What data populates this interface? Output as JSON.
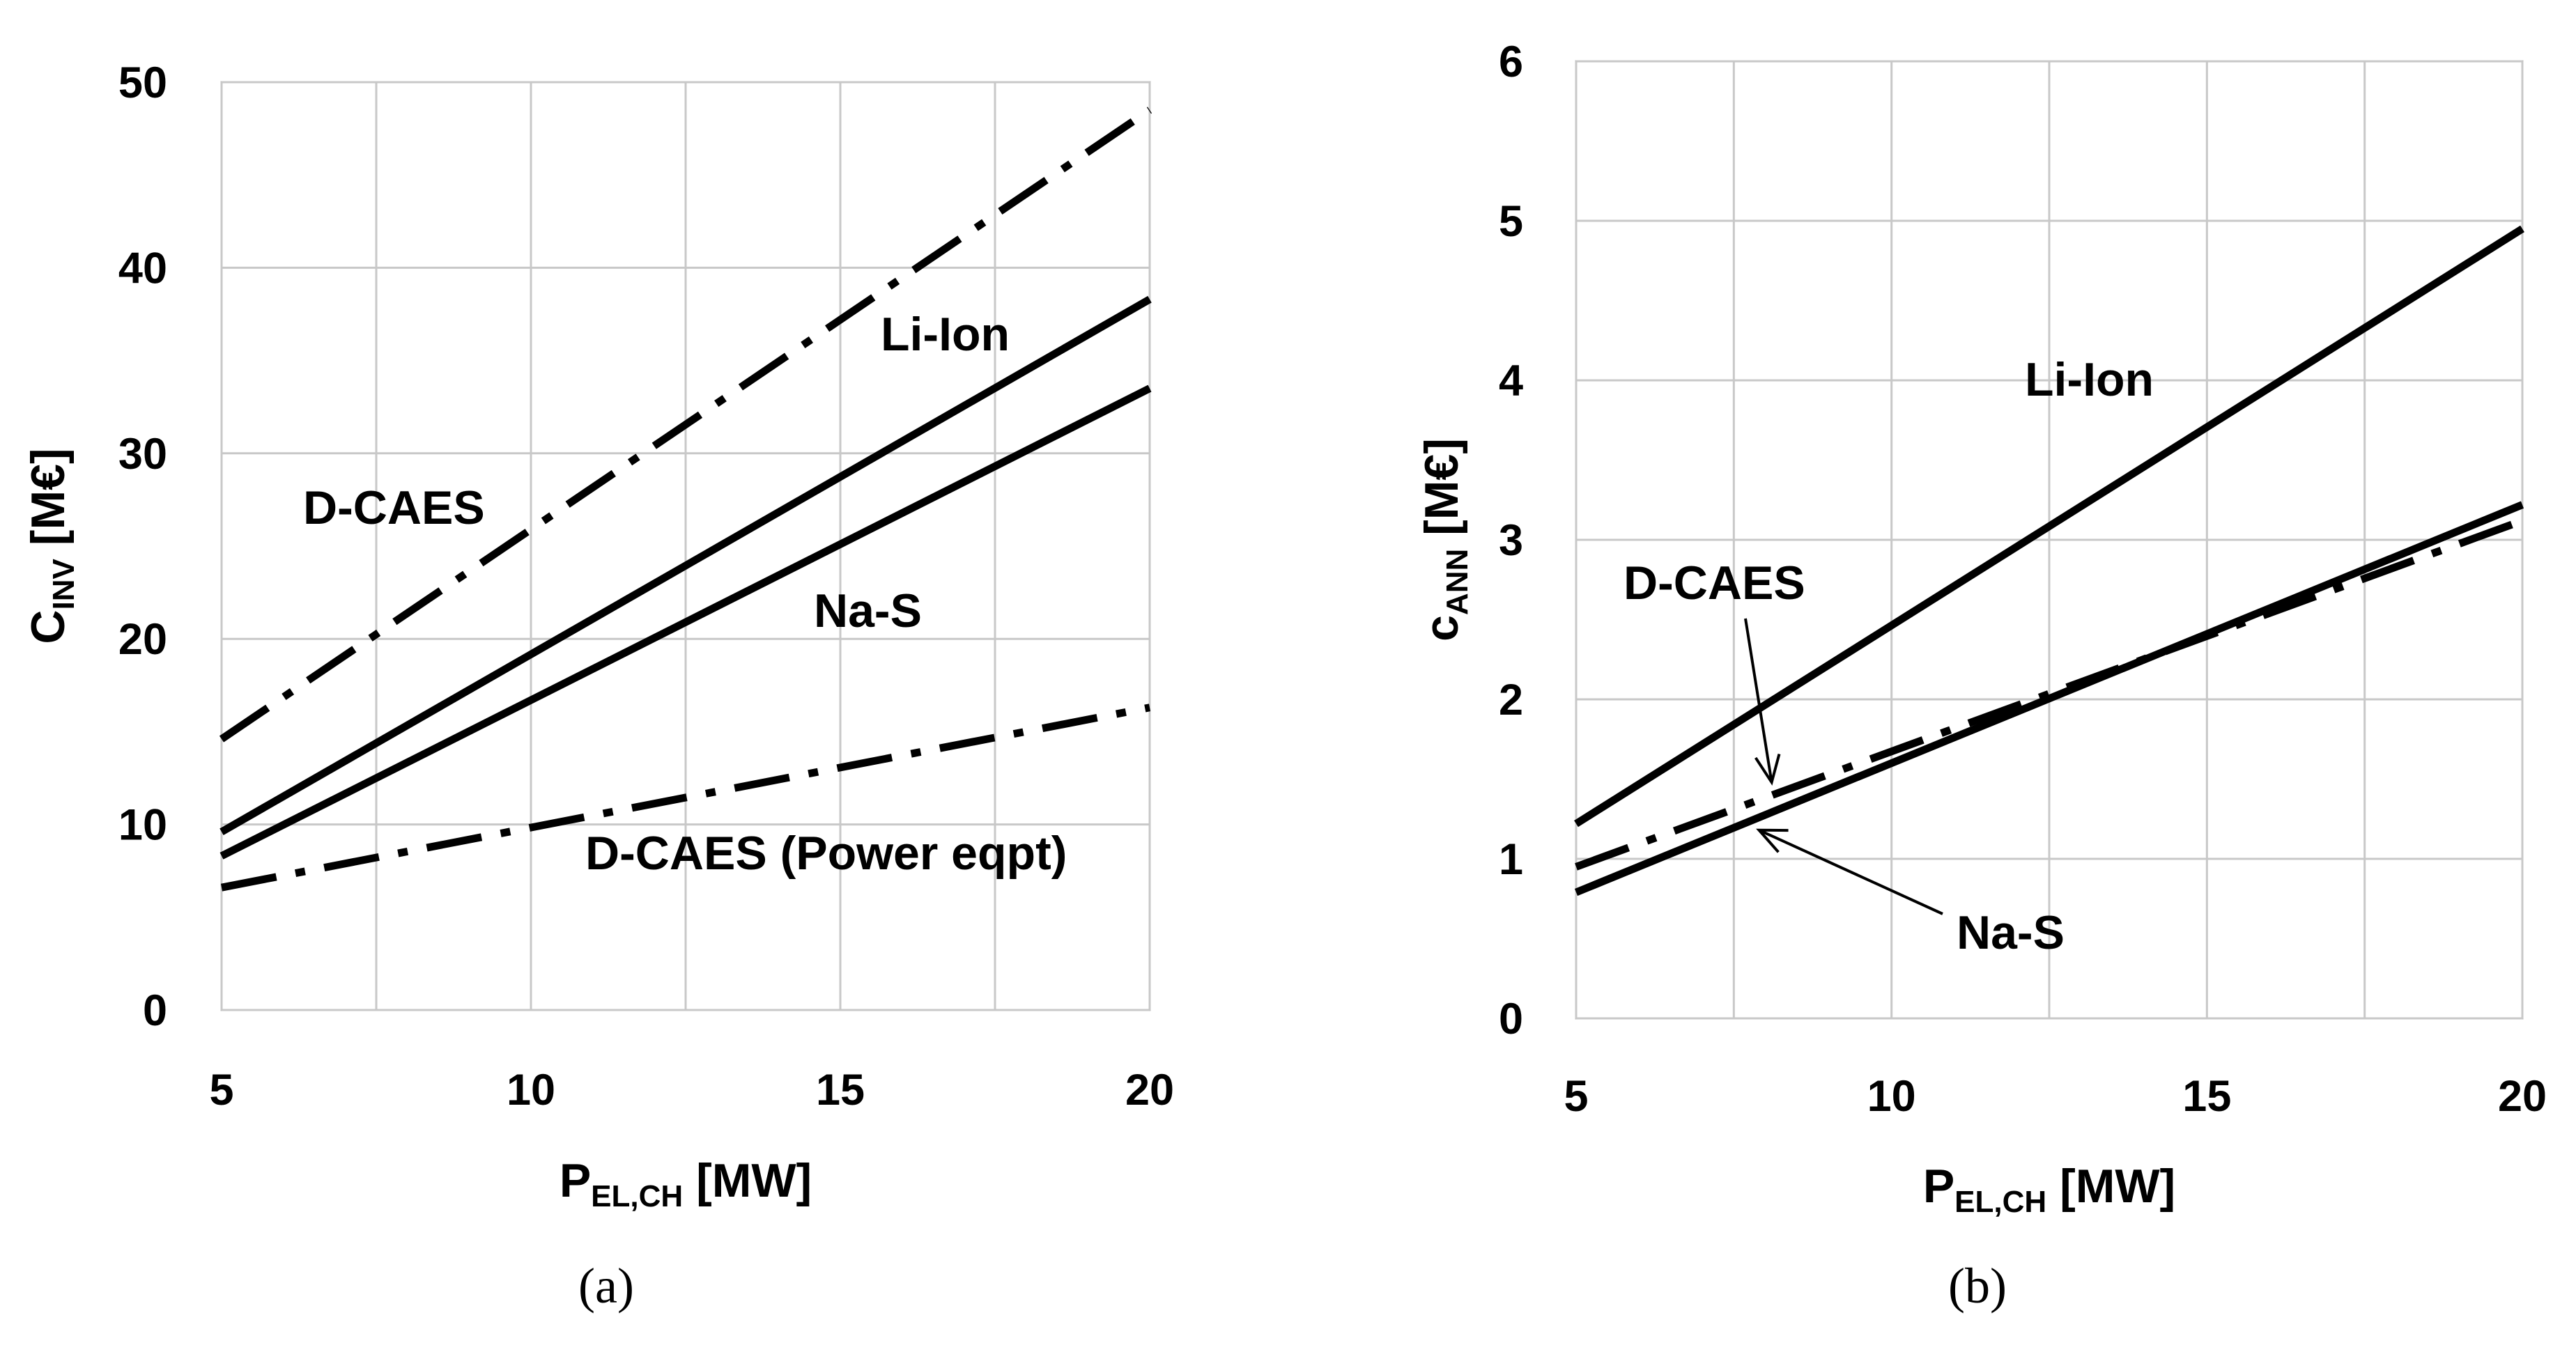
{
  "chart_data": [
    {
      "type": "line",
      "panel": "(a)",
      "xlabel_main": "P",
      "xlabel_sub": "EL,CH",
      "xlabel_unit": " [MW]",
      "ylabel_main": "C",
      "ylabel_sub": "INV",
      "ylabel_unit": " [M€]",
      "xlim": [
        5,
        20
      ],
      "ylim": [
        0,
        50
      ],
      "xticks": [
        5,
        10,
        15,
        20
      ],
      "yticks": [
        0,
        10,
        20,
        30,
        40,
        50
      ],
      "xgrid": [
        5,
        7.5,
        10,
        12.5,
        15,
        17.5,
        20
      ],
      "ygrid": [
        0,
        10,
        20,
        30,
        40,
        50
      ],
      "series": [
        {
          "name": "D-CAES",
          "style": "dashdot",
          "x": [
            5,
            20
          ],
          "y": [
            14.6,
            48.5
          ]
        },
        {
          "name": "Li-Ion",
          "style": "solid",
          "x": [
            5,
            20
          ],
          "y": [
            9.6,
            38.3
          ]
        },
        {
          "name": "Na-S",
          "style": "solid",
          "x": [
            5,
            20
          ],
          "y": [
            8.3,
            33.5
          ]
        },
        {
          "name": "D-CAES (Power eqpt)",
          "style": "dashdot",
          "x": [
            5,
            20
          ],
          "y": [
            6.6,
            16.3
          ]
        }
      ],
      "annotations": [
        {
          "text": "D-CAES",
          "x": 6.4,
          "y": 26.8
        },
        {
          "text": "Li-Ion",
          "x": 17.2,
          "y": 35.3
        },
        {
          "text": "Na-S",
          "x": 15.4,
          "y": 20.6
        },
        {
          "text": "D-CAES (Power eqpt)",
          "x": 16.3,
          "y": 8.2
        }
      ]
    },
    {
      "type": "line",
      "panel": "(b)",
      "xlabel_main": "P",
      "xlabel_sub": "EL,CH",
      "xlabel_unit": " [MW]",
      "ylabel_main": "c",
      "ylabel_sub": "ANN",
      "ylabel_unit": " [M€]",
      "xlim": [
        5,
        20
      ],
      "ylim": [
        0,
        6
      ],
      "xticks": [
        5,
        10,
        15,
        20
      ],
      "yticks": [
        0,
        1,
        2,
        3,
        4,
        5,
        6
      ],
      "xgrid": [
        5,
        7.5,
        10,
        12.5,
        15,
        17.5,
        20
      ],
      "ygrid": [
        0,
        1,
        2,
        3,
        4,
        5,
        6
      ],
      "series": [
        {
          "name": "Li-Ion",
          "style": "solid",
          "x": [
            5,
            20
          ],
          "y": [
            1.22,
            4.95
          ]
        },
        {
          "name": "D-CAES",
          "style": "dashdot",
          "x": [
            5,
            20
          ],
          "y": [
            0.95,
            3.12
          ]
        },
        {
          "name": "Na-S",
          "style": "solid",
          "x": [
            5,
            20
          ],
          "y": [
            0.79,
            3.22
          ]
        }
      ],
      "annotations": [
        {
          "text": "Li-Ion",
          "x": 13.6,
          "y": 3.98
        },
        {
          "text": "D-CAES",
          "x": 9.0,
          "y": 2.63,
          "arrow_to": [
            8.1,
            1.48
          ]
        },
        {
          "text": "Na-S",
          "x": 15.8,
          "y": 0.55,
          "arrow_to": [
            7.9,
            1.18
          ]
        }
      ]
    }
  ]
}
